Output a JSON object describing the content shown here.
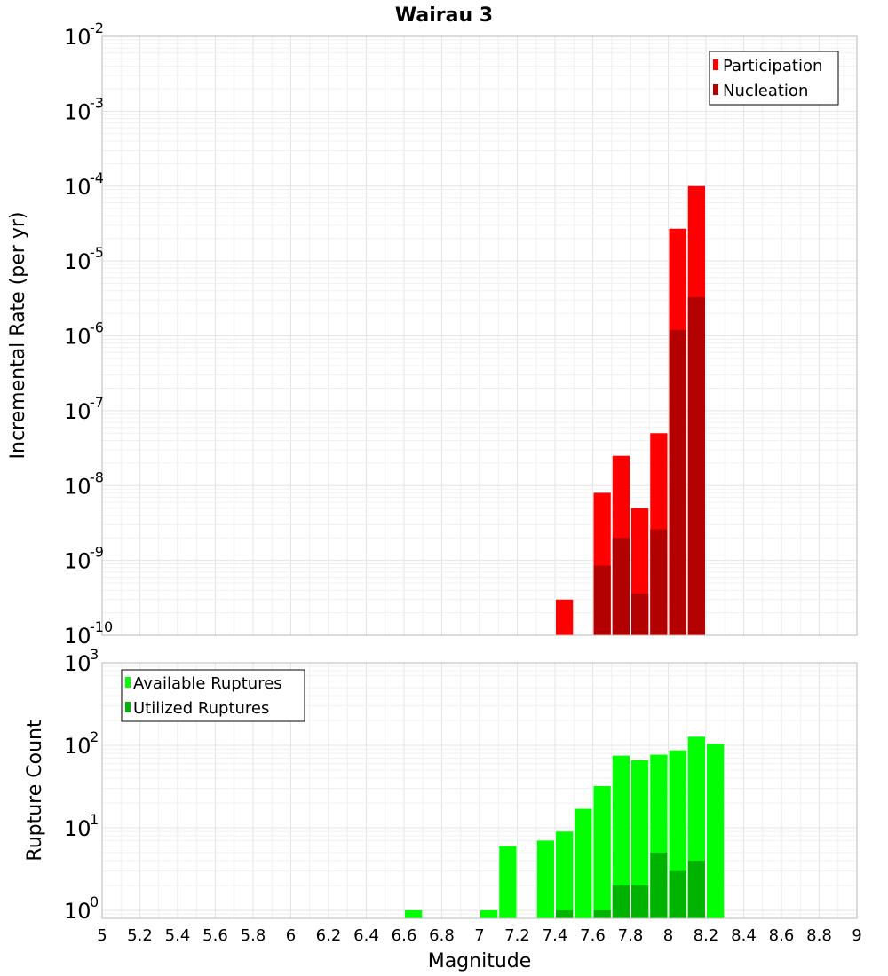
{
  "chart_data": [
    {
      "type": "bar",
      "title": "Wairau 3",
      "ylabel": "Incremental Rate (per yr)",
      "xlabel": "",
      "xlim": [
        5,
        9
      ],
      "ylim": [
        1e-10,
        0.01
      ],
      "yscale": "log",
      "grid": true,
      "legend_position": "top-right",
      "bar_width": 0.1,
      "series": [
        {
          "name": "Participation",
          "color": "#ff0000",
          "x": [
            7.45,
            7.65,
            7.75,
            7.85,
            7.95,
            8.05,
            8.15
          ],
          "values": [
            3e-10,
            8e-09,
            2.5e-08,
            5e-09,
            5e-08,
            2.7e-05,
            0.0001
          ]
        },
        {
          "name": "Nucleation",
          "color": "#b30000",
          "x": [
            7.65,
            7.75,
            7.85,
            7.95,
            8.05,
            8.15
          ],
          "values": [
            8.5e-10,
            2e-09,
            3.6e-10,
            2.6e-09,
            1.2e-06,
            3.3e-06
          ]
        }
      ]
    },
    {
      "type": "bar",
      "ylabel": "Rupture Count",
      "xlabel": "Magnitude",
      "xlim": [
        5,
        9
      ],
      "ylim": [
        0.8,
        1000
      ],
      "yscale": "log",
      "grid": true,
      "legend_position": "top-left",
      "bar_width": 0.1,
      "xticks": [
        "5",
        "5.2",
        "5.4",
        "5.6",
        "5.8",
        "6",
        "6.2",
        "6.4",
        "6.6",
        "6.8",
        "7",
        "7.2",
        "7.4",
        "7.6",
        "7.8",
        "8",
        "8.2",
        "8.4",
        "8.6",
        "8.8",
        "9"
      ],
      "series": [
        {
          "name": "Available Ruptures",
          "color": "#00ff00",
          "x": [
            6.65,
            7.05,
            7.15,
            7.35,
            7.45,
            7.55,
            7.65,
            7.75,
            7.85,
            7.95,
            8.05,
            8.15,
            8.25
          ],
          "values": [
            1,
            1,
            6,
            7,
            9,
            17,
            32,
            75,
            66,
            77,
            87,
            127,
            104
          ]
        },
        {
          "name": "Utilized Ruptures",
          "color": "#00b300",
          "x": [
            7.45,
            7.65,
            7.75,
            7.85,
            7.95,
            8.05,
            8.15
          ],
          "values": [
            1,
            1,
            2,
            2,
            5,
            3,
            4
          ]
        }
      ]
    }
  ]
}
